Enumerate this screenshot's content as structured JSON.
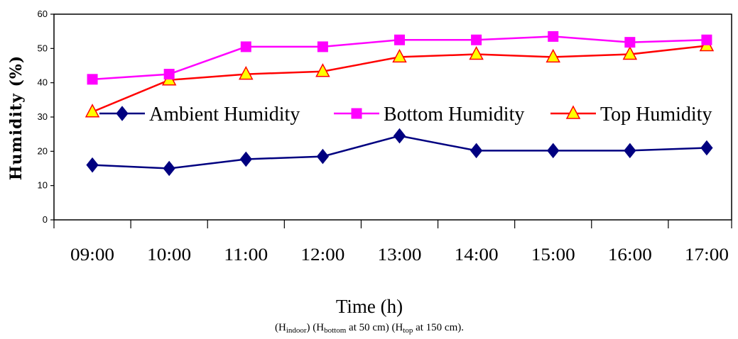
{
  "chart_data": {
    "type": "line",
    "categories": [
      "09:00",
      "10:00",
      "11:00",
      "12:00",
      "13:00",
      "14:00",
      "15:00",
      "16:00",
      "17:00"
    ],
    "series": [
      {
        "name": "Ambient Humidity",
        "values": [
          16,
          15,
          17.7,
          18.5,
          24.5,
          20.2,
          20.2,
          20.2,
          21
        ],
        "color": "#000080",
        "marker": "diamond"
      },
      {
        "name": "Bottom Humidity",
        "values": [
          41,
          42.5,
          50.5,
          50.5,
          52.5,
          52.5,
          53.5,
          51.8,
          52.5
        ],
        "color": "#ff00ff",
        "marker": "square"
      },
      {
        "name": "Top Humidity",
        "values": [
          31.5,
          40.8,
          42.5,
          43.3,
          47.5,
          48.3,
          47.5,
          48.3,
          50.8
        ],
        "color": "#ff0000",
        "marker": "triangle",
        "marker_fill": "#ffff00"
      }
    ],
    "xlabel": "Time (h)",
    "ylabel": "Humidity (%)",
    "ylim": [
      0,
      60
    ],
    "yticks": [
      0,
      10,
      20,
      30,
      40,
      50,
      60
    ],
    "grid": false,
    "legend_position": "inside-middle"
  },
  "caption": {
    "parts": [
      {
        "text": "(H",
        "sub": false
      },
      {
        "text": "indoor",
        "sub": true
      },
      {
        "text": ") (H",
        "sub": false
      },
      {
        "text": "bottom",
        "sub": true
      },
      {
        "text": " at 50 cm) (H",
        "sub": false
      },
      {
        "text": "top",
        "sub": true
      },
      {
        "text": " at 150 cm).",
        "sub": false
      }
    ]
  }
}
